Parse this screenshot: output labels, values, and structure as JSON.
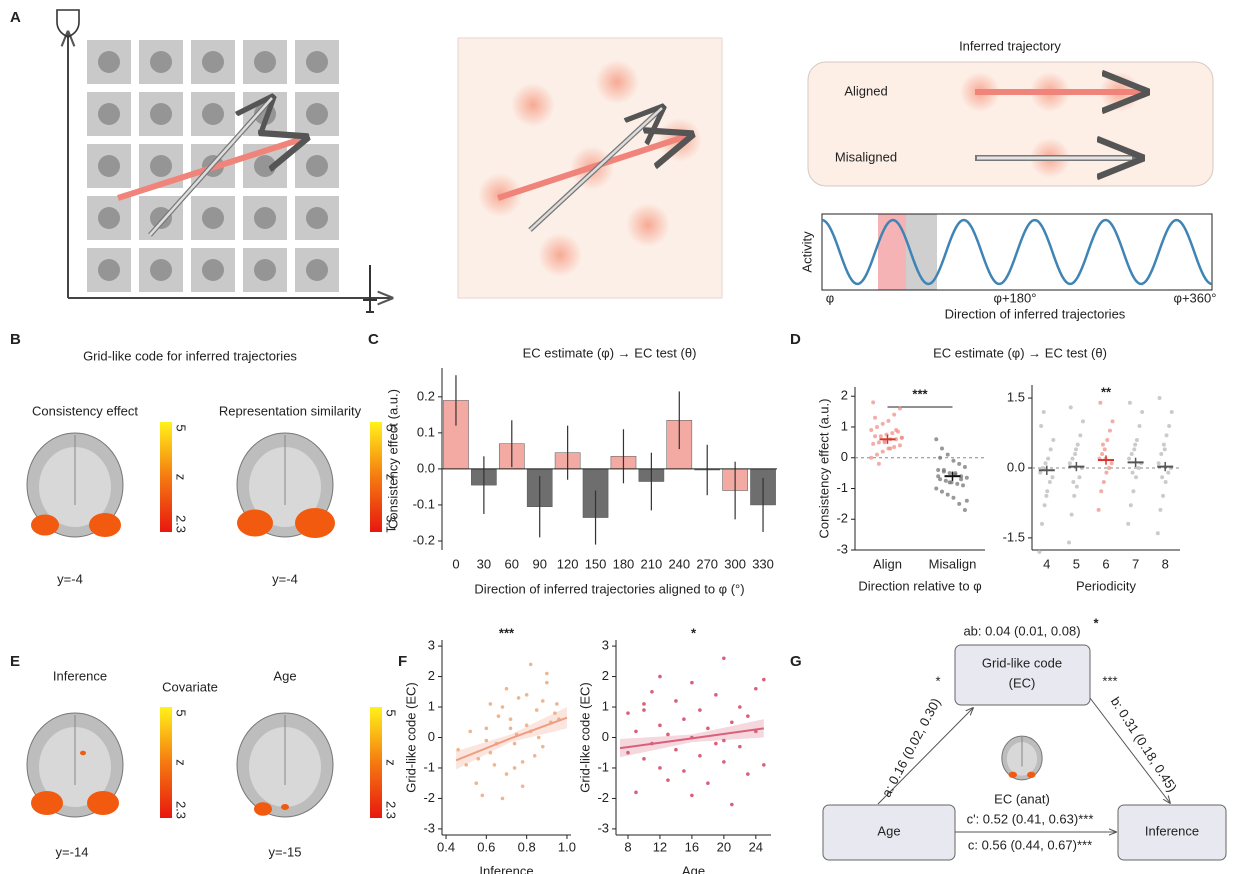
{
  "panel_labels": [
    "A",
    "B",
    "C",
    "D",
    "E",
    "F",
    "G"
  ],
  "panel_a": {
    "title": "Inferred trajectory",
    "aligned": "Aligned",
    "misaligned": "Misaligned",
    "y_label": "Activity",
    "x_ticks": [
      "φ",
      "φ+180°",
      "φ+360°"
    ],
    "x_label": "Direction of inferred trajectories"
  },
  "panel_b": {
    "title": "Grid-like code for inferred trajectories",
    "maps": [
      {
        "label": "Consistency effect",
        "slice": "y=-4",
        "cbar": [
          "5",
          "z",
          "2.3"
        ]
      },
      {
        "label": "Representation similarity",
        "slice": "y=-4",
        "cbar": [
          "5",
          "z",
          "3.1"
        ]
      }
    ]
  },
  "panel_e": {
    "title": "Covariate",
    "maps": [
      {
        "label": "Inference",
        "slice": "y=-14",
        "cbar": [
          "5",
          "z",
          "2.3"
        ]
      },
      {
        "label": "Age",
        "slice": "y=-15",
        "cbar": [
          "5",
          "z",
          "2.3"
        ]
      }
    ]
  },
  "chart_data": [
    {
      "type": "bar",
      "title": "EC estimate (φ) → EC test (θ)",
      "categories": [
        "0",
        "30",
        "60",
        "90",
        "120",
        "150",
        "180",
        "210",
        "240",
        "270",
        "300",
        "330"
      ],
      "values": [
        0.19,
        -0.045,
        0.07,
        -0.105,
        0.045,
        -0.135,
        0.035,
        -0.035,
        0.135,
        -0.003,
        -0.06,
        -0.1
      ],
      "errors": [
        0.07,
        0.08,
        0.065,
        0.085,
        0.075,
        0.075,
        0.075,
        0.08,
        0.08,
        0.07,
        0.08,
        0.075
      ],
      "colors": [
        "#f2aaa2",
        "#6e6e6e",
        "#f2aaa2",
        "#6e6e6e",
        "#f2aaa2",
        "#6e6e6e",
        "#f2aaa2",
        "#6e6e6e",
        "#f2aaa2",
        "#6e6e6e",
        "#f2aaa2",
        "#6e6e6e"
      ],
      "label_colors": [
        "#e07b70",
        "#444444",
        "#e07b70",
        "#444444",
        "#e07b70",
        "#444444",
        "#e07b70",
        "#444444",
        "#e07b70",
        "#444444",
        "#e07b70",
        "#444444"
      ],
      "x_label": "Direction of inferred trajectories aligned to φ (°)",
      "y_label": "Consistency effect (a.u.)",
      "ylim": [
        -0.225,
        0.28
      ],
      "yticks": [
        -0.2,
        -0.1,
        {
          "value": 0,
          "label": "0.0"
        },
        0.1,
        0.2
      ]
    },
    {
      "type": "strip",
      "title": "EC estimate (φ) → EC test (θ)",
      "annotation": "***",
      "categories": [
        "Align",
        "Misalign"
      ],
      "points": [
        [
          0.0,
          0.1,
          0.2,
          0.3,
          0.35,
          0.4,
          0.45,
          0.5,
          0.55,
          0.6,
          0.6,
          0.65,
          0.7,
          0.7,
          0.75,
          0.8,
          0.85,
          0.9,
          1.0,
          1.1,
          1.2,
          1.4,
          1.6,
          1.8,
          -0.2,
          0.5,
          0.3,
          0.9,
          0.65,
          1.3
        ],
        [
          0.6,
          0.3,
          0.1,
          -0.1,
          -0.2,
          -0.3,
          -0.4,
          -0.45,
          -0.5,
          -0.55,
          -0.6,
          -0.65,
          -0.7,
          -0.75,
          -0.8,
          -0.85,
          -0.9,
          -1.0,
          -1.1,
          -1.2,
          -1.3,
          -1.5,
          -1.7,
          -0.6,
          -0.4,
          -0.8,
          -0.5,
          -0.7,
          -1.4,
          0.0
        ]
      ],
      "means": [
        0.6,
        -0.6
      ],
      "errors": [
        0.15,
        0.15
      ],
      "point_colors": [
        "#ef8a80",
        "#6e6e6e"
      ],
      "mean_colors": [
        "#d9342b",
        "#111111"
      ],
      "x_label": "Direction relative to φ",
      "y_label": "Consistency effect (a.u.)",
      "ylim": [
        -3,
        2.3
      ],
      "yticks": [
        -3,
        -2,
        -1,
        0,
        1,
        2
      ]
    },
    {
      "type": "strip",
      "annotation": "**",
      "categories": [
        "4",
        "5",
        "6",
        "7",
        "8"
      ],
      "points": [
        [
          -1.8,
          -1.2,
          -0.8,
          -0.5,
          -0.3,
          -0.2,
          -0.1,
          0,
          0.1,
          0.2,
          0.4,
          0.6,
          0.9,
          1.2,
          -0.6
        ],
        [
          -1.6,
          -1.0,
          -0.6,
          -0.4,
          -0.2,
          0,
          0.1,
          0.2,
          0.3,
          0.5,
          0.7,
          1.0,
          1.3,
          -0.3,
          0.4
        ],
        [
          -0.9,
          -0.5,
          -0.3,
          -0.1,
          0,
          0.1,
          0.2,
          0.3,
          0.4,
          0.6,
          0.8,
          1.0,
          1.4,
          0.5,
          0.2
        ],
        [
          -1.2,
          -0.8,
          -0.5,
          -0.2,
          0,
          0.1,
          0.2,
          0.3,
          0.4,
          0.6,
          0.9,
          1.2,
          1.4,
          -0.1,
          0.5
        ],
        [
          -1.4,
          -0.9,
          -0.6,
          -0.3,
          -0.1,
          0,
          0.1,
          0.3,
          0.5,
          0.7,
          0.9,
          1.2,
          1.5,
          -0.2,
          0.4
        ]
      ],
      "means": [
        -0.05,
        0.03,
        0.17,
        0.12,
        0.03
      ],
      "errors": [
        0.1,
        0.1,
        0.1,
        0.1,
        0.1
      ],
      "point_colors": [
        "#b5b5b5",
        "#b5b5b5",
        "#ef8a80",
        "#b5b5b5",
        "#b5b5b5"
      ],
      "mean_colors": [
        "#555555",
        "#555555",
        "#d9342b",
        "#555555",
        "#555555"
      ],
      "x_label": "Periodicity",
      "ylim": [
        -1.76,
        1.78
      ],
      "yticks": [
        -1.5,
        {
          "value": 0,
          "label": "0.0"
        },
        1.5
      ]
    },
    {
      "type": "scatter",
      "annotation": "***",
      "color": "#f0b48f",
      "line_color": "#f19c80",
      "x": [
        0.5,
        0.55,
        0.6,
        0.62,
        0.65,
        0.68,
        0.7,
        0.72,
        0.75,
        0.78,
        0.8,
        0.82,
        0.85,
        0.88,
        0.9,
        0.92,
        0.95,
        0.58,
        0.66,
        0.74,
        0.84,
        0.9,
        0.7,
        0.6,
        0.8,
        0.52,
        0.64,
        0.76,
        0.86,
        0.94,
        0.46,
        0.56,
        0.68,
        0.72,
        0.78,
        0.82,
        0.88,
        0.96,
        0.62,
        0.74
      ],
      "y": [
        -0.9,
        -1.5,
        0.3,
        -0.5,
        -0.2,
        1.0,
        -1.2,
        0.6,
        0.1,
        -0.8,
        1.4,
        0.2,
        0.9,
        -0.3,
        1.8,
        0.5,
        1.1,
        -1.9,
        0.7,
        -1.0,
        -0.6,
        2.1,
        1.6,
        -0.1,
        0.4,
        0.2,
        -0.9,
        1.3,
        0.0,
        0.8,
        -0.4,
        -0.7,
        -2.0,
        0.3,
        -1.6,
        2.4,
        1.2,
        0.6,
        1.1,
        -0.2
      ],
      "fit": {
        "x": [
          0.45,
          0.72,
          1.0
        ],
        "y": [
          -0.75,
          -0.03,
          0.65
        ],
        "ci_lower": [
          -1.05,
          -0.15,
          0.3
        ],
        "ci_upper": [
          -0.45,
          0.1,
          1.0
        ]
      },
      "x_label": "Inference",
      "y_label": "Grid-like code (EC)",
      "xlim": [
        0.38,
        1.02
      ],
      "xticks": [
        0.4,
        0.6,
        0.8,
        {
          "value": 1,
          "label": "1.0"
        }
      ],
      "ylim": [
        -3.2,
        3.2
      ],
      "yticks": [
        -3,
        -2,
        -1,
        0,
        1,
        2,
        3
      ]
    },
    {
      "type": "scatter",
      "annotation": "*",
      "color": "#d9607a",
      "line_color": "#d9607a",
      "x": [
        8,
        8,
        9,
        9,
        10,
        10,
        11,
        11,
        12,
        12,
        13,
        13,
        14,
        14,
        15,
        15,
        16,
        16,
        17,
        17,
        18,
        18,
        19,
        19,
        20,
        20,
        21,
        21,
        22,
        22,
        23,
        23,
        24,
        24,
        25,
        25,
        12,
        16,
        20,
        10
      ],
      "y": [
        -0.5,
        0.8,
        -1.8,
        0.2,
        0.9,
        -0.7,
        -0.2,
        1.5,
        -1.0,
        0.4,
        0.1,
        -1.4,
        1.2,
        -0.4,
        0.6,
        -1.1,
        1.8,
        0.0,
        -0.6,
        0.9,
        0.3,
        -1.5,
        1.4,
        -0.2,
        2.6,
        -0.8,
        0.5,
        -2.2,
        1.0,
        -0.3,
        0.7,
        -1.2,
        1.6,
        0.2,
        -0.9,
        1.9,
        2.0,
        -1.9,
        -0.1,
        1.1
      ],
      "fit": {
        "x": [
          7,
          16,
          25
        ],
        "y": [
          -0.35,
          -0.03,
          0.3
        ],
        "ci_lower": [
          -0.65,
          -0.15,
          0.0
        ],
        "ci_upper": [
          -0.05,
          0.1,
          0.6
        ]
      },
      "x_label": "Age",
      "y_label": "Grid-like code (EC)",
      "xlim": [
        6.5,
        25.9
      ],
      "xticks": [
        8,
        12,
        16,
        20,
        24
      ],
      "ylim": [
        -3.2,
        3.2
      ],
      "yticks": [
        -3,
        -2,
        -1,
        0,
        1,
        2,
        3
      ]
    }
  ],
  "panel_g": {
    "mediator": [
      "Grid-like code",
      "(EC)"
    ],
    "predictor": "Age",
    "outcome": "Inference",
    "ab": "ab: 0.04 (0.01, 0.08)",
    "ab_sig": "*",
    "a": "a: 0.16 (0.02, 0.30)",
    "a_sig": "*",
    "b": "b: 0.31 (0.18, 0.45)",
    "b_sig": "***",
    "c_prime": "c': 0.52 (0.41, 0.63)***",
    "c": "c: 0.56 (0.44, 0.67)***",
    "roi": "EC (anat)"
  }
}
